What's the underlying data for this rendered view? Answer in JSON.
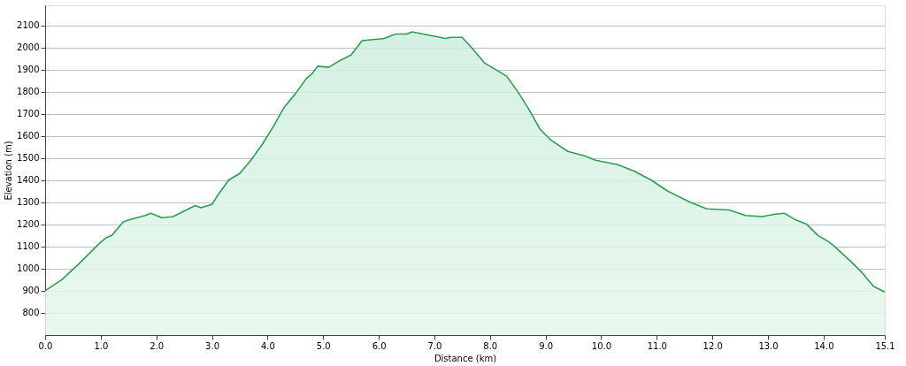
{
  "chart_data": {
    "type": "area",
    "xlabel": "Distance (km)",
    "ylabel": "Elevation (m)",
    "x": [
      0,
      0.3,
      0.6,
      1.0,
      1.1,
      1.2,
      1.4,
      1.5,
      1.8,
      1.9,
      2.1,
      2.3,
      2.5,
      2.7,
      2.8,
      3.0,
      3.1,
      3.3,
      3.5,
      3.7,
      3.9,
      4.1,
      4.3,
      4.5,
      4.7,
      4.8,
      4.9,
      5.1,
      5.3,
      5.5,
      5.7,
      5.9,
      6.1,
      6.3,
      6.5,
      6.6,
      6.8,
      7.0,
      7.2,
      7.3,
      7.5,
      7.7,
      7.9,
      8.1,
      8.3,
      8.5,
      8.7,
      8.9,
      9.1,
      9.4,
      9.7,
      9.9,
      10.3,
      10.6,
      10.9,
      11.2,
      11.6,
      11.9,
      12.3,
      12.6,
      12.9,
      13.1,
      13.3,
      13.5,
      13.7,
      13.9,
      14.1,
      14.2,
      14.5,
      14.7,
      14.9,
      15.1
    ],
    "series": [
      {
        "color": "#2e9e4f",
        "values": [
          900,
          950,
          1020,
          1120,
          1140,
          1150,
          1210,
          1220,
          1240,
          1250,
          1230,
          1235,
          1260,
          1285,
          1275,
          1290,
          1330,
          1400,
          1430,
          1490,
          1560,
          1640,
          1730,
          1790,
          1860,
          1880,
          1915,
          1910,
          1940,
          1965,
          2030,
          2035,
          2040,
          2060,
          2060,
          2070,
          2060,
          2050,
          2040,
          2045,
          2045,
          1990,
          1930,
          1900,
          1870,
          1800,
          1720,
          1630,
          1580,
          1530,
          1510,
          1490,
          1470,
          1440,
          1400,
          1350,
          1300,
          1270,
          1265,
          1240,
          1235,
          1245,
          1250,
          1220,
          1200,
          1150,
          1120,
          1100,
          1030,
          980,
          920,
          895
        ]
      }
    ],
    "xlim": [
      0,
      15.1
    ],
    "xticks": [
      {
        "value": 0,
        "label": "0.0"
      },
      {
        "value": 1,
        "label": "1.0"
      },
      {
        "value": 2,
        "label": "2.0"
      },
      {
        "value": 3,
        "label": "3.0"
      },
      {
        "value": 4,
        "label": "4.0"
      },
      {
        "value": 5,
        "label": "5.0"
      },
      {
        "value": 6,
        "label": "6.0"
      },
      {
        "value": 7,
        "label": "7.0"
      },
      {
        "value": 8,
        "label": "8.0"
      },
      {
        "value": 9,
        "label": "9.0"
      },
      {
        "value": 10,
        "label": "10.0"
      },
      {
        "value": 11,
        "label": "11.0"
      },
      {
        "value": 12,
        "label": "12.0"
      },
      {
        "value": 13,
        "label": "13.0"
      },
      {
        "value": 14,
        "label": "14.0"
      },
      {
        "value": 15.1,
        "label": "15.1"
      }
    ],
    "ylim": [
      700,
      2190
    ],
    "yticks": [
      800,
      900,
      1000,
      1100,
      1200,
      1300,
      1400,
      1500,
      1600,
      1700,
      1800,
      1900,
      2000,
      2100
    ],
    "grid": "y"
  }
}
